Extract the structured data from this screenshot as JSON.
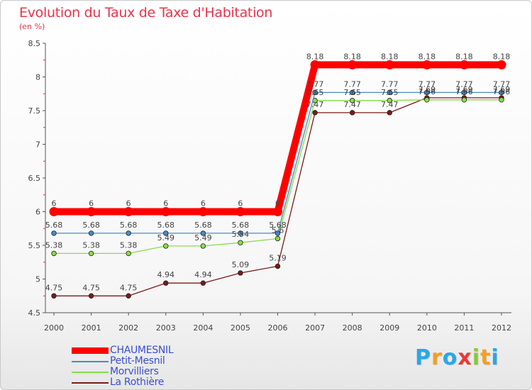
{
  "chart_data": {
    "type": "line",
    "title": "Evolution du Taux de Taxe d'Habitation",
    "subtitle": "(en %)",
    "categories": [
      "2000",
      "2001",
      "2002",
      "2003",
      "2004",
      "2005",
      "2006",
      "2007",
      "2008",
      "2009",
      "2010",
      "2011",
      "2012"
    ],
    "ylim": [
      4.5,
      8.5
    ],
    "yticks": [
      "4.5",
      "5",
      "5.5",
      "6",
      "6.5",
      "7",
      "7.5",
      "8",
      "8.5"
    ],
    "series": [
      {
        "name": "CHAUMESNIL",
        "color": "#ff0000",
        "values": [
          6,
          6,
          6,
          6,
          6,
          6,
          6,
          8.18,
          8.18,
          8.18,
          8.18,
          8.18,
          8.18
        ],
        "labels": [
          "6",
          "6",
          "6",
          "6",
          "6",
          "6",
          "6",
          "8.18",
          "8.18",
          "8.18",
          "8.18",
          "8.18",
          "8.18"
        ]
      },
      {
        "name": "Petit-Mesnil",
        "color": "#4a8ac6",
        "values": [
          5.68,
          5.68,
          5.68,
          5.68,
          5.68,
          5.68,
          5.68,
          7.77,
          7.77,
          7.77,
          7.77,
          7.77,
          7.77
        ],
        "labels": [
          "5.68",
          "5.68",
          "5.68",
          "5.68",
          "5.68",
          "5.68",
          "5.68",
          "7.77",
          "7.77",
          "7.77",
          "7.77",
          "7.77",
          "7.77"
        ]
      },
      {
        "name": "Morvilliers",
        "color": "#88dd4a",
        "values": [
          5.38,
          5.38,
          5.38,
          5.49,
          5.49,
          5.54,
          5.6,
          7.65,
          7.65,
          7.65,
          7.66,
          7.66,
          7.66
        ],
        "labels": [
          "5.38",
          "5.38",
          "5.38",
          "5.49",
          "5.49",
          "5.54",
          "5.6",
          "7.65",
          "7.65",
          "7.65",
          "7.66",
          "7.66",
          "7.66"
        ]
      },
      {
        "name": "La Rothière",
        "color": "#7a1a1a",
        "values": [
          4.75,
          4.75,
          4.75,
          4.94,
          4.94,
          5.09,
          5.19,
          7.47,
          7.47,
          7.47,
          7.69,
          7.69,
          7.69
        ],
        "labels": [
          "4.75",
          "4.75",
          "4.75",
          "4.94",
          "4.94",
          "5.09",
          "5.19",
          "7.47",
          "7.47",
          "7.47",
          "7.69",
          "7.69",
          "7.69"
        ]
      }
    ]
  },
  "logo": {
    "letters": [
      "P",
      "r",
      "o",
      "x",
      "i",
      "t",
      "i"
    ],
    "colors": [
      "#2aa7e8",
      "#f2a020",
      "#2aa7e8",
      "#e83a3a",
      "#8cc63f",
      "#f2a020",
      "#2aa7e8"
    ]
  }
}
